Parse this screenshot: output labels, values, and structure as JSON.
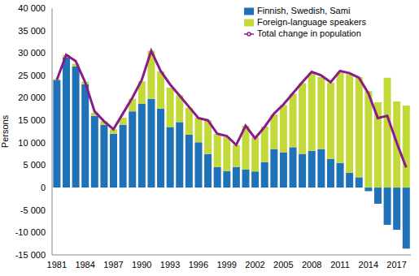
{
  "chart_data": {
    "type": "bar",
    "stacked": true,
    "grid": false,
    "legend": "upper right",
    "y_label": "Persons",
    "categories": [
      "1981",
      null,
      null,
      "1984",
      null,
      null,
      "1987",
      null,
      null,
      "1990",
      null,
      null,
      "1993",
      null,
      null,
      "1996",
      null,
      null,
      "1999",
      null,
      null,
      "2002",
      null,
      null,
      "2005",
      null,
      null,
      "2008",
      null,
      null,
      "2011",
      null,
      null,
      "2014",
      null,
      null,
      "2017",
      null
    ],
    "ylim": [
      -15000,
      40000
    ],
    "yticks": [
      {
        "value": -15000,
        "label": "-15 000"
      },
      {
        "value": -10000,
        "label": "-10 000"
      },
      {
        "value": -5000,
        "label": "-5 000"
      },
      0,
      {
        "value": 5000,
        "label": "5 000"
      },
      {
        "value": 10000,
        "label": "10 000"
      },
      {
        "value": 15000,
        "label": "15 000"
      },
      {
        "value": 20000,
        "label": "20 000"
      },
      {
        "value": 25000,
        "label": "25 000"
      },
      {
        "value": 30000,
        "label": "30 000"
      },
      {
        "value": 35000,
        "label": "35 000"
      },
      {
        "value": 40000,
        "label": "40 000"
      }
    ],
    "series": [
      {
        "name": "Finnish, Swedish, Sami",
        "type": "bar",
        "color": "#1f72b8",
        "values": [
          24000,
          29000,
          27000,
          23000,
          16000,
          14000,
          12000,
          14000,
          17000,
          18700,
          19800,
          17600,
          13500,
          14600,
          11800,
          10100,
          7500,
          4600,
          3700,
          4600,
          4000,
          3600,
          5700,
          8600,
          7800,
          9000,
          7500,
          8200,
          8600,
          6400,
          5500,
          3300,
          2300,
          -800,
          -3600,
          -8300,
          -9400,
          -13600
        ]
      },
      {
        "name": "Foreign-language speakers",
        "type": "bar",
        "color": "#c3d93a",
        "values": [
          200,
          600,
          600,
          600,
          700,
          800,
          1000,
          1600,
          2800,
          5000,
          10700,
          8300,
          8800,
          6000,
          6000,
          5500,
          7500,
          7400,
          7600,
          4900,
          9800,
          7600,
          7900,
          7700,
          10600,
          11900,
          15800,
          17400,
          16000,
          17000,
          20300,
          22000,
          22300,
          21500,
          19000,
          24500,
          19200,
          18300
        ]
      },
      {
        "name": "Total change in population",
        "type": "line",
        "color": "#8a1a8c",
        "values": [
          24000,
          29600,
          28200,
          23500,
          17000,
          14800,
          13000,
          16500,
          20000,
          24000,
          30500,
          26000,
          23000,
          20500,
          18000,
          15500,
          15000,
          12000,
          11500,
          9500,
          13800,
          11000,
          13500,
          16500,
          18500,
          21000,
          23500,
          25800,
          25000,
          23500,
          26000,
          25500,
          24500,
          21000,
          15500,
          16000,
          10000,
          4500
        ]
      }
    ]
  }
}
